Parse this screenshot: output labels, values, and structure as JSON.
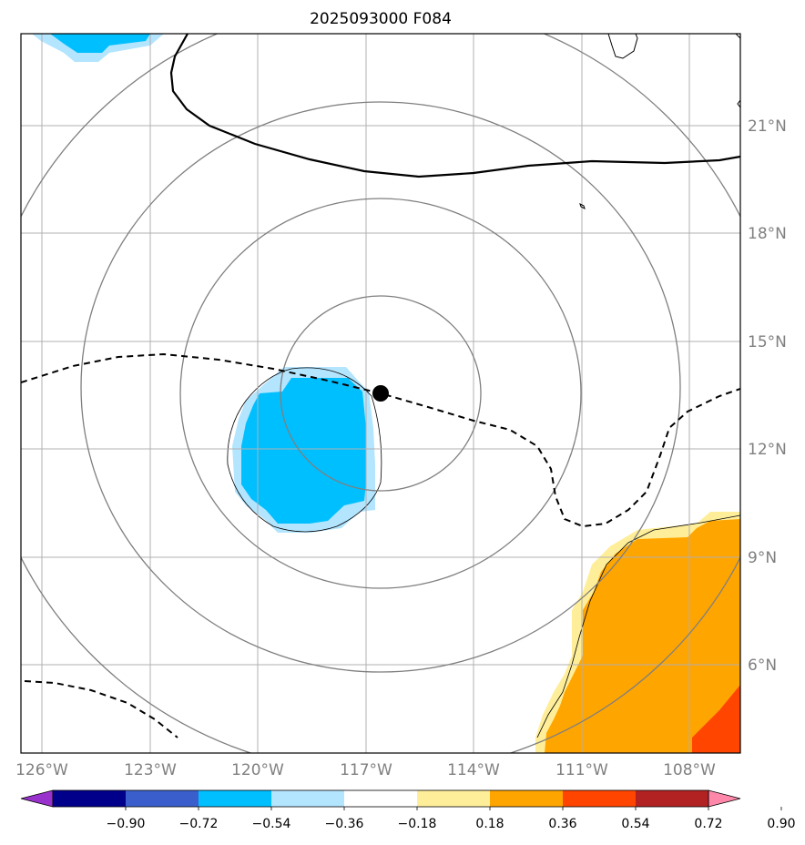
{
  "title": "2025093000 F084",
  "map": {
    "lon_ticks": [
      "126°W",
      "123°W",
      "120°W",
      "117°W",
      "114°W",
      "111°W",
      "108°W"
    ],
    "lat_ticks": [
      "21°N",
      "18°N",
      "15°N",
      "12°N",
      "9°N",
      "6°N"
    ],
    "storm_center": {
      "lon": -116.6,
      "lat": 13.6
    },
    "range_rings": "concentric gray circles around storm center",
    "anomaly_colors": {
      "cold_strong": "#00bfff",
      "cold_weak": "#b3e5ff",
      "warm_weak": "#ffee99",
      "warm_medium": "#ffa500",
      "warm_strong": "#ff4500"
    }
  },
  "colorbar": {
    "tick_labels": [
      "−0.90",
      "−0.72",
      "−0.54",
      "−0.36",
      "−0.18",
      "0.18",
      "0.36",
      "0.54",
      "0.72",
      "0.90"
    ],
    "colors": [
      "#9932cc",
      "#00008b",
      "#3a5fcd",
      "#00bfff",
      "#b3e5ff",
      "#ffffff",
      "#ffee99",
      "#ffa500",
      "#ff4500",
      "#b22222",
      "#ff88aa"
    ],
    "extend": "both"
  }
}
